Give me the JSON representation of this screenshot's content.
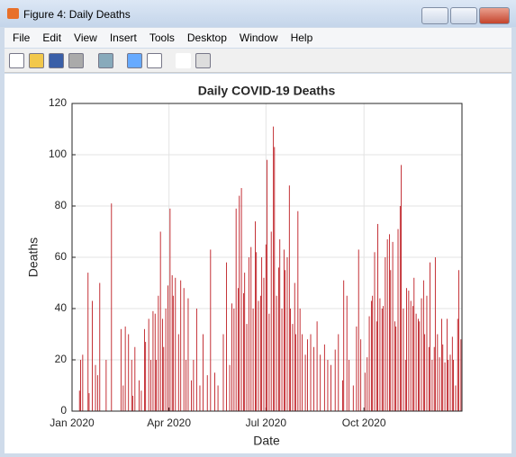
{
  "window": {
    "title": "Figure 4: Daily Deaths",
    "menu": [
      "File",
      "Edit",
      "View",
      "Insert",
      "Tools",
      "Desktop",
      "Window",
      "Help"
    ]
  },
  "chart_data": {
    "type": "bar",
    "title": "Daily COVID-19 Deaths",
    "x_label": "Date",
    "y_label": "Deaths",
    "color": "#c1272d",
    "grid": true,
    "xlim": [
      0,
      366
    ],
    "xticks": [
      {
        "value": 0,
        "label": "Jan 2020"
      },
      {
        "value": 91,
        "label": "Apr 2020"
      },
      {
        "value": 182,
        "label": "Jul 2020"
      },
      {
        "value": 274,
        "label": "Oct 2020"
      }
    ],
    "ylim": [
      0,
      120
    ],
    "yticks": [
      0,
      20,
      40,
      60,
      80,
      100,
      120
    ],
    "x": [
      0,
      7,
      8,
      10,
      15,
      16,
      19,
      22,
      24,
      26,
      32,
      37,
      46,
      48,
      50,
      53,
      56,
      57,
      59,
      63,
      65,
      68,
      69,
      72,
      74,
      76,
      78,
      79,
      81,
      83,
      85,
      86,
      88,
      90,
      92,
      94,
      95,
      97,
      100,
      102,
      105,
      107,
      109,
      112,
      114,
      117,
      120,
      123,
      127,
      130,
      134,
      137,
      142,
      145,
      148,
      150,
      152,
      154,
      156,
      157,
      159,
      161,
      162,
      164,
      166,
      168,
      170,
      172,
      173,
      175,
      177,
      178,
      180,
      182,
      183,
      185,
      187,
      189,
      190,
      192,
      194,
      195,
      197,
      199,
      200,
      202,
      204,
      205,
      207,
      209,
      210,
      212,
      214,
      216,
      219,
      221,
      224,
      227,
      230,
      233,
      237,
      240,
      243,
      247,
      250,
      254,
      255,
      258,
      260,
      264,
      267,
      269,
      271,
      275,
      277,
      279,
      281,
      282,
      284,
      286,
      287,
      289,
      291,
      292,
      294,
      296,
      298,
      299,
      301,
      303,
      304,
      306,
      308,
      309,
      311,
      313,
      314,
      316,
      318,
      320,
      321,
      323,
      325,
      326,
      328,
      330,
      331,
      333,
      335,
      336,
      338,
      340,
      341,
      343,
      345,
      347,
      348,
      350,
      352,
      353,
      355,
      357,
      358,
      360,
      362,
      363,
      365
    ],
    "values": [
      4,
      8,
      20,
      22,
      54,
      7,
      43,
      18,
      14,
      50,
      20,
      81,
      32,
      10,
      33,
      30,
      20,
      6,
      25,
      12,
      8,
      32,
      27,
      36,
      20,
      39,
      38,
      20,
      45,
      70,
      36,
      25,
      40,
      49,
      79,
      53,
      45,
      52,
      30,
      51,
      48,
      20,
      44,
      12,
      20,
      40,
      10,
      30,
      14,
      63,
      15,
      10,
      30,
      58,
      18,
      42,
      40,
      79,
      48,
      84,
      87,
      46,
      54,
      34,
      60,
      64,
      40,
      74,
      62,
      43,
      45,
      60,
      52,
      65,
      98,
      38,
      70,
      111,
      103,
      45,
      56,
      67,
      40,
      63,
      55,
      60,
      88,
      40,
      34,
      50,
      30,
      78,
      40,
      30,
      22,
      28,
      30,
      25,
      35,
      22,
      26,
      20,
      18,
      24,
      30,
      12,
      51,
      45,
      20,
      10,
      33,
      63,
      28,
      15,
      21,
      37,
      43,
      45,
      62,
      35,
      73,
      44,
      40,
      41,
      60,
      67,
      69,
      55,
      66,
      35,
      33,
      71,
      80,
      96,
      40,
      20,
      48,
      47,
      43,
      41,
      52,
      38,
      36,
      35,
      44,
      51,
      30,
      45,
      25,
      58,
      20,
      25,
      60,
      30,
      21,
      36,
      26,
      19,
      36,
      20,
      22,
      29,
      20,
      10,
      36,
      55,
      28
    ]
  }
}
